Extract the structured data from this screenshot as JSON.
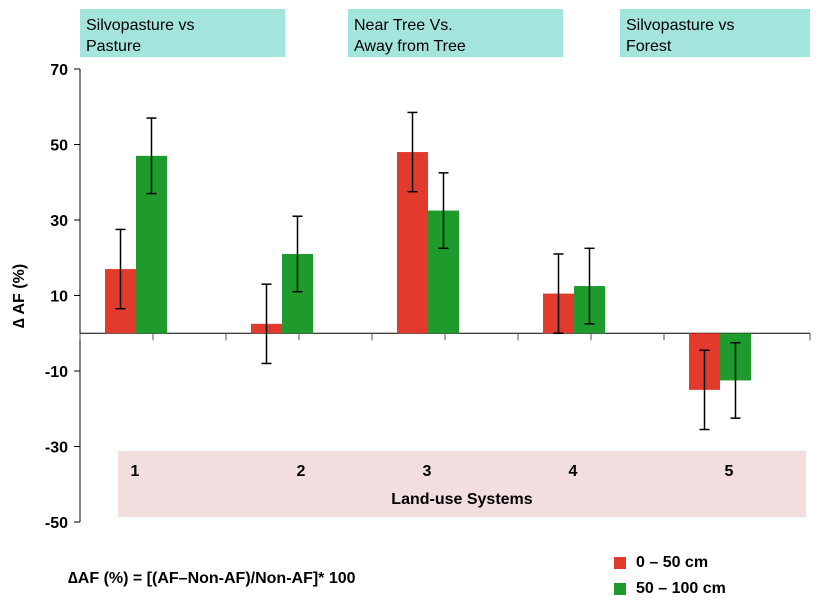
{
  "headers": [
    {
      "line1": "Silvopasture vs",
      "line2": "Pasture"
    },
    {
      "line1": "Near Tree Vs.",
      "line2": "Away from Tree"
    },
    {
      "line1": "Silvopasture vs",
      "line2": "Forest"
    }
  ],
  "formula": "∆AF (%) = [(AF–Non-AF)/Non-AF]* 100",
  "colors": {
    "series1": "#e23b2e",
    "series2": "#1f9a2c",
    "header_bg": "#a3e4dc",
    "xlabel_bg": "#f2dede"
  },
  "chart_data": {
    "type": "bar",
    "categories": [
      "1",
      "2",
      "3",
      "4",
      "5"
    ],
    "xlabel": "Land-use Systems",
    "ylabel": "∆ AF  (%)",
    "ylim": [
      -50,
      70
    ],
    "yticks": [
      "70",
      "50",
      "30",
      "10",
      "-10",
      "-30",
      "-50"
    ],
    "ytick_values": [
      70,
      50,
      30,
      10,
      -10,
      -30,
      -50
    ],
    "series": [
      {
        "name": "0 – 50 cm",
        "values": [
          17,
          2.5,
          48,
          10.5,
          -15
        ],
        "errors": [
          10.5,
          10.5,
          10.5,
          10.5,
          10.5
        ]
      },
      {
        "name": "50 – 100 cm",
        "values": [
          47,
          21,
          32.5,
          12.5,
          -12.5
        ],
        "errors": [
          10,
          10,
          10,
          10,
          10
        ]
      }
    ],
    "legend_position": "bottom-right",
    "grid": false
  }
}
